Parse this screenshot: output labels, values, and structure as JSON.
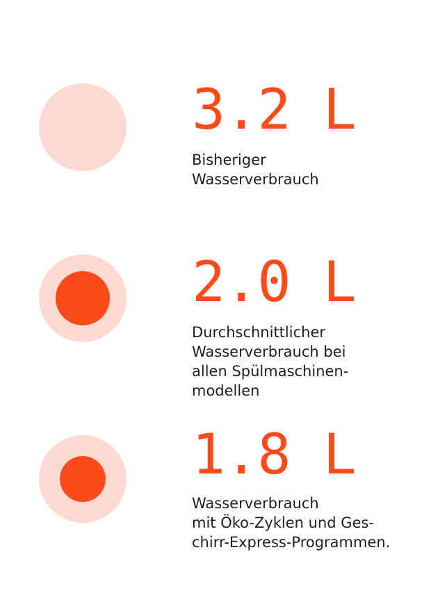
{
  "colors": {
    "accent": "#fc4a1a",
    "accent_light": "#fdd9d1",
    "text": "#1e1e1e"
  },
  "stats": [
    {
      "value": "3.2 L",
      "description": "Bisheriger\nWasserverbrauch",
      "icon": "light-circle-icon"
    },
    {
      "value": "2.0 L",
      "description": "Durchschnittlicher\nWasserverbrauch bei\nallen Spülmaschinen-\nmodellen",
      "icon": "circle-with-large-dot-icon"
    },
    {
      "value": "1.8 L",
      "description": "Wasserverbrauch\nmit Öko-Zyklen und Ges-\nchirr-Express-Programmen.",
      "icon": "circle-with-small-dot-icon"
    }
  ]
}
